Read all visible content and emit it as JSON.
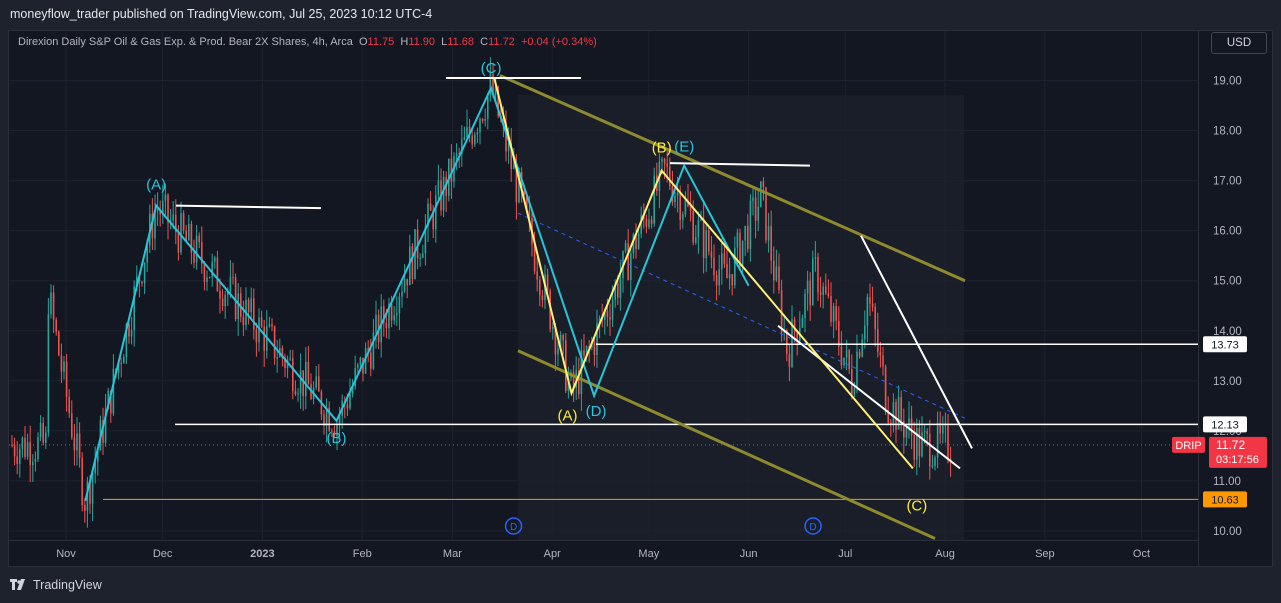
{
  "header": {
    "publisher": "moneyflow_trader published on TradingView.com, Jul 25, 2023 10:12 UTC-4"
  },
  "symbol": {
    "title": "Direxion Daily S&P Oil & Gas Exp. & Prod. Bear 2X Shares, 4h, Arca",
    "o_label": "O",
    "o": "11.75",
    "h_label": "H",
    "h": "11.90",
    "l_label": "L",
    "l": "11.68",
    "c_label": "C",
    "c": "11.72",
    "change": "+0.04 (+0.34%)"
  },
  "currency_button": "USD",
  "footer": {
    "brand": "TradingView"
  },
  "colors": {
    "background": "#131722",
    "candle_up": "#26a69a",
    "candle_down": "#ef5350",
    "wave_cyan": "#26c6da",
    "wave_yellow": "#fff176",
    "channel": "#8f8a2e",
    "guide_white": "#ffffff",
    "support_orange": "#ff9800",
    "price_tag_red": "#f23645"
  },
  "chart_data": {
    "type": "candlestick",
    "timeframe": "4h",
    "x_ticks": [
      "Nov",
      "Dec",
      "2023",
      "Feb",
      "Mar",
      "Apr",
      "May",
      "Jun",
      "Jul",
      "Aug",
      "Sep",
      "Oct"
    ],
    "y_ticks": [
      "19.00",
      "18.00",
      "17.00",
      "16.00",
      "15.00",
      "14.00",
      "13.00",
      "12.00",
      "11.00",
      "10.00"
    ],
    "ylim": [
      9.7,
      19.9
    ],
    "wave_pivots_cyan": [
      {
        "date": "2022-11-07",
        "price": 10.6
      },
      {
        "date": "2022-11-29",
        "price": 16.5,
        "label": "(A)"
      },
      {
        "date": "2023-01-24",
        "price": 12.2,
        "label": "(B)"
      },
      {
        "date": "2023-03-13",
        "price": 18.85,
        "label": "(C)"
      },
      {
        "date": "2023-04-14",
        "price": 12.7,
        "label": "(D)"
      },
      {
        "date": "2023-05-12",
        "price": 17.3,
        "label": "(E)"
      },
      {
        "date": "2023-06-01",
        "price": 14.9
      }
    ],
    "wave_pivots_yellow": [
      {
        "date": "2023-03-14",
        "price": 19.05
      },
      {
        "date": "2023-04-07",
        "price": 12.75,
        "label": "(A)"
      },
      {
        "date": "2023-05-05",
        "price": 17.2,
        "label": "(B)"
      },
      {
        "date": "2023-07-22",
        "price": 11.25,
        "label": "(C)"
      }
    ],
    "horizontal_levels": [
      {
        "price": 13.73,
        "label": "13.73",
        "color": "white"
      },
      {
        "price": 12.13,
        "label": "12.13",
        "color": "white"
      },
      {
        "price": 10.63,
        "label": "10.63",
        "color": "orange"
      }
    ],
    "last_price": {
      "symbol": "DRIP",
      "value": "11.72",
      "countdown": "03:17:56"
    },
    "dividend_markers": [
      {
        "date": "2023-03-20",
        "label": "D"
      },
      {
        "date": "2023-06-21",
        "label": "D"
      }
    ]
  }
}
